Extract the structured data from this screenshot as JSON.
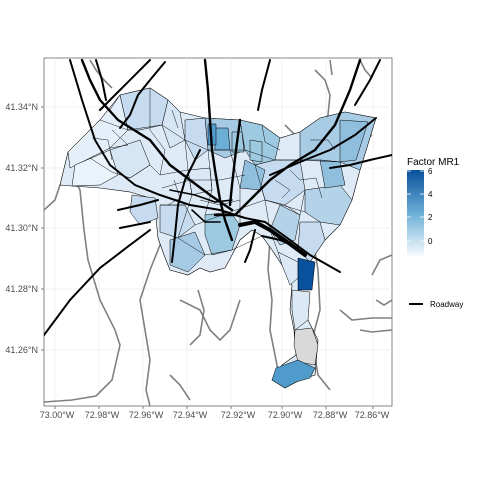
{
  "chart_data": {
    "type": "choropleth-map",
    "x_ticks": [
      "73.00°W",
      "72.98°W",
      "72.96°W",
      "72.94°W",
      "72.92°W",
      "72.90°W",
      "72.88°W",
      "72.86°W"
    ],
    "y_ticks": [
      "41.26°N",
      "41.28°N",
      "41.30°N",
      "41.32°N",
      "41.34°N"
    ],
    "grid": true,
    "legend": {
      "fill_title": "Factor MR1",
      "fill_ticks": [
        "0",
        "2",
        "4",
        "6"
      ],
      "fill_range": [
        -1,
        6
      ],
      "colors": {
        "low": "#f7fbff",
        "mid": "#6baed6",
        "high": "#08519c"
      },
      "line_label": "Roadway",
      "placement": "right"
    },
    "colors": {
      "panel_bg": "#ffffff",
      "grid": "#ebebeb",
      "boundary": "#808080",
      "roadway": "#000000",
      "tract_border": "#000000",
      "na_fill": "#d9d9d9"
    }
  }
}
